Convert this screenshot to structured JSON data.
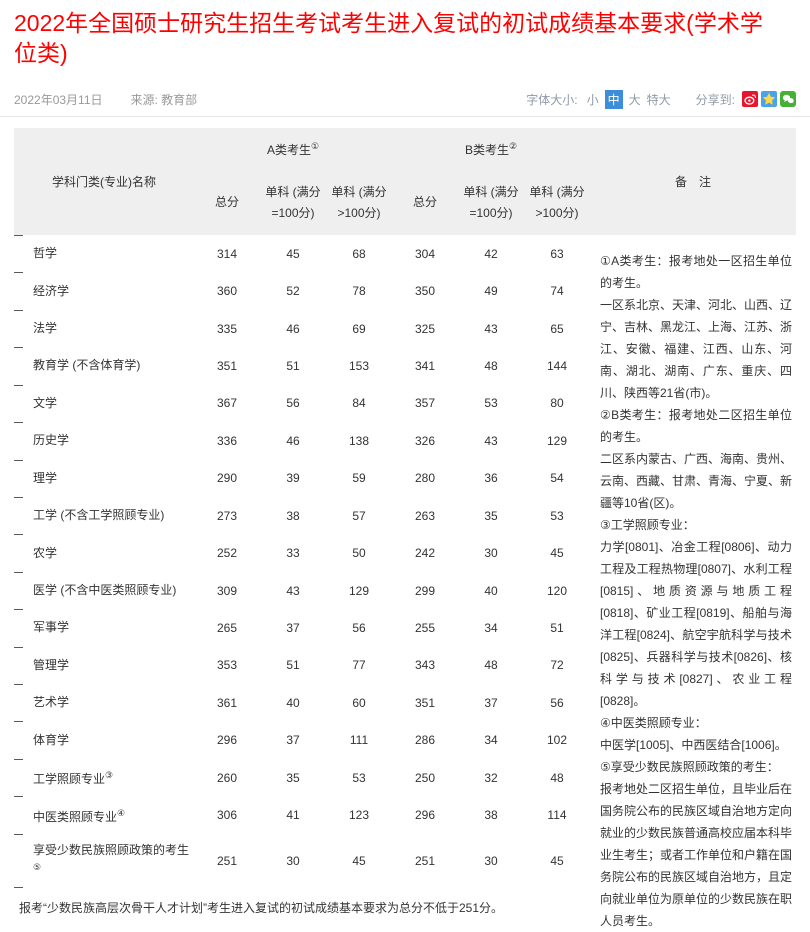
{
  "page": {
    "title": "2022年全国硕士研究生招生考试考生进入复试的初试成绩基本要求(学术学位类)",
    "date": "2022年03月11日",
    "source": "来源: 教育部",
    "font_size": {
      "label": "字体大小:",
      "options": [
        "小",
        "中",
        "大",
        "特大"
      ],
      "selected": "中",
      "selected_bg": "#3e8ddd"
    },
    "share": {
      "label": "分享到:",
      "icons": [
        "weibo",
        "qzone",
        "wechat"
      ],
      "colors": {
        "weibo": "#e6162d",
        "qzone": "#4aa3e8",
        "qzone_star": "#ffd54a",
        "wechat": "#45b035"
      }
    }
  },
  "table": {
    "col_name_header": "学科门类(专业)名称",
    "group_a": "A类考生",
    "group_a_sup": "①",
    "group_b": "B类考生",
    "group_b_sup": "②",
    "sub_headers": [
      "总分",
      "单科 (满分=100分)",
      "单科 (满分>100分)"
    ],
    "remark_header": "备　注",
    "rows": [
      {
        "name": "哲学",
        "sup": "",
        "a": [
          314,
          45,
          68
        ],
        "b": [
          304,
          42,
          63
        ]
      },
      {
        "name": "经济学",
        "sup": "",
        "a": [
          360,
          52,
          78
        ],
        "b": [
          350,
          49,
          74
        ]
      },
      {
        "name": "法学",
        "sup": "",
        "a": [
          335,
          46,
          69
        ],
        "b": [
          325,
          43,
          65
        ]
      },
      {
        "name": "教育学 (不含体育学)",
        "sup": "",
        "a": [
          351,
          51,
          153
        ],
        "b": [
          341,
          48,
          144
        ]
      },
      {
        "name": "文学",
        "sup": "",
        "a": [
          367,
          56,
          84
        ],
        "b": [
          357,
          53,
          80
        ]
      },
      {
        "name": "历史学",
        "sup": "",
        "a": [
          336,
          46,
          138
        ],
        "b": [
          326,
          43,
          129
        ]
      },
      {
        "name": "理学",
        "sup": "",
        "a": [
          290,
          39,
          59
        ],
        "b": [
          280,
          36,
          54
        ]
      },
      {
        "name": "工学 (不含工学照顾专业)",
        "sup": "",
        "a": [
          273,
          38,
          57
        ],
        "b": [
          263,
          35,
          53
        ]
      },
      {
        "name": "农学",
        "sup": "",
        "a": [
          252,
          33,
          50
        ],
        "b": [
          242,
          30,
          45
        ]
      },
      {
        "name": "医学 (不含中医类照顾专业)",
        "sup": "",
        "a": [
          309,
          43,
          129
        ],
        "b": [
          299,
          40,
          120
        ]
      },
      {
        "name": "军事学",
        "sup": "",
        "a": [
          265,
          37,
          56
        ],
        "b": [
          255,
          34,
          51
        ]
      },
      {
        "name": "管理学",
        "sup": "",
        "a": [
          353,
          51,
          77
        ],
        "b": [
          343,
          48,
          72
        ]
      },
      {
        "name": "艺术学",
        "sup": "",
        "a": [
          361,
          40,
          60
        ],
        "b": [
          351,
          37,
          56
        ]
      },
      {
        "name": "体育学",
        "sup": "",
        "a": [
          296,
          37,
          111
        ],
        "b": [
          286,
          34,
          102
        ]
      },
      {
        "name": "工学照顾专业",
        "sup": "③",
        "a": [
          260,
          35,
          53
        ],
        "b": [
          250,
          32,
          48
        ]
      },
      {
        "name": "中医类照顾专业",
        "sup": "④",
        "a": [
          306,
          41,
          123
        ],
        "b": [
          296,
          38,
          114
        ]
      },
      {
        "name": "享受少数民族照顾政策的考生",
        "sup": "⑤",
        "tall": true,
        "a": [
          251,
          30,
          45
        ],
        "b": [
          251,
          30,
          45
        ]
      }
    ],
    "remarks": [
      "①A类考生：报考地处一区招生单位的考生。",
      "一区系北京、天津、河北、山西、辽宁、吉林、黑龙江、上海、江苏、浙江、安徽、福建、江西、山东、河南、湖北、湖南、广东、重庆、四川、陕西等21省(市)。",
      "②B类考生：报考地处二区招生单位的考生。",
      "二区系内蒙古、广西、海南、贵州、云南、西藏、甘肃、青海、宁夏、新疆等10省(区)。",
      "③工学照顾专业：",
      "力学[0801]、冶金工程[0806]、动力工程及工程热物理[0807]、水利工程[0815]、地质资源与地质工程[0818]、矿业工程[0819]、船舶与海洋工程[0824]、航空宇航科学与技术[0825]、兵器科学与技术[0826]、核科学与技术[0827]、农业工程[0828]。",
      "④中医类照顾专业：",
      "中医学[1005]、中西医结合[1006]。",
      "⑤享受少数民族照顾政策的考生：",
      "报考地处二区招生单位，且毕业后在国务院公布的民族区域自治地方定向就业的少数民族普通高校应届本科毕业生考生；或者工作单位和户籍在国务院公布的民族区域自治地方，且定向就业单位为原单位的少数民族在职人员考生。"
    ],
    "footnote": "报考“少数民族高层次骨干人才计划”考生进入复试的初试成绩基本要求为总分不低于251分。"
  }
}
